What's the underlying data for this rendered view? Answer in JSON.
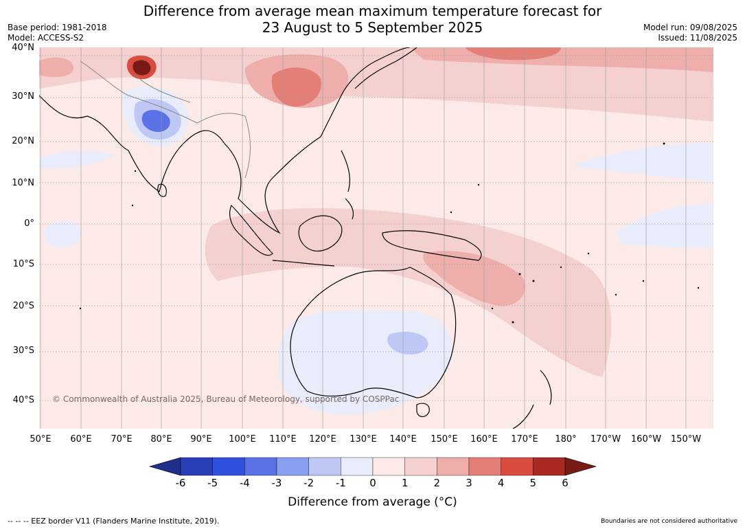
{
  "header": {
    "title_line1": "Difference from average mean maximum temperature forecast for",
    "title_line2": "23 August to 5 September 2025",
    "base_period": "Base period: 1981-2018",
    "model": "Model: ACCESS-S2",
    "model_run": "Model run: 09/08/2025",
    "issued": "Issued: 11/08/2025"
  },
  "map": {
    "lat_labels": [
      "40°N",
      "30°N",
      "20°N",
      "10°N",
      "0°",
      "10°S",
      "20°S",
      "30°S",
      "40°S"
    ],
    "lon_labels": [
      "50°E",
      "60°E",
      "70°E",
      "80°E",
      "90°E",
      "100°E",
      "110°E",
      "120°E",
      "130°E",
      "140°E",
      "150°E",
      "160°E",
      "170°E",
      "180°",
      "170°W",
      "160°W",
      "150°W"
    ],
    "copyright": "© Commonwealth of Australia 2025, Bureau of Meteorology, supported by COSPPac"
  },
  "colorbar": {
    "ticks": [
      "-6",
      "-5",
      "-4",
      "-3",
      "-2",
      "-1",
      "0",
      "1",
      "2",
      "3",
      "4",
      "5",
      "6"
    ],
    "colors": [
      "#1f2f8a",
      "#2a3fb5",
      "#3050e0",
      "#5a72e6",
      "#8a9ff0",
      "#bfc8f5",
      "#e8ecfb",
      "#fbeae8",
      "#f4d1cf",
      "#eeaeab",
      "#e47f78",
      "#d94c40",
      "#a82a22",
      "#7a1a14"
    ],
    "label": "Difference from average (°C)"
  },
  "footer": {
    "eez_note": "--  --  -- EEZ border V11 (Flanders Marine Institute, 2019).",
    "boundaries_note": "Boundaries are not considered authoritative"
  }
}
